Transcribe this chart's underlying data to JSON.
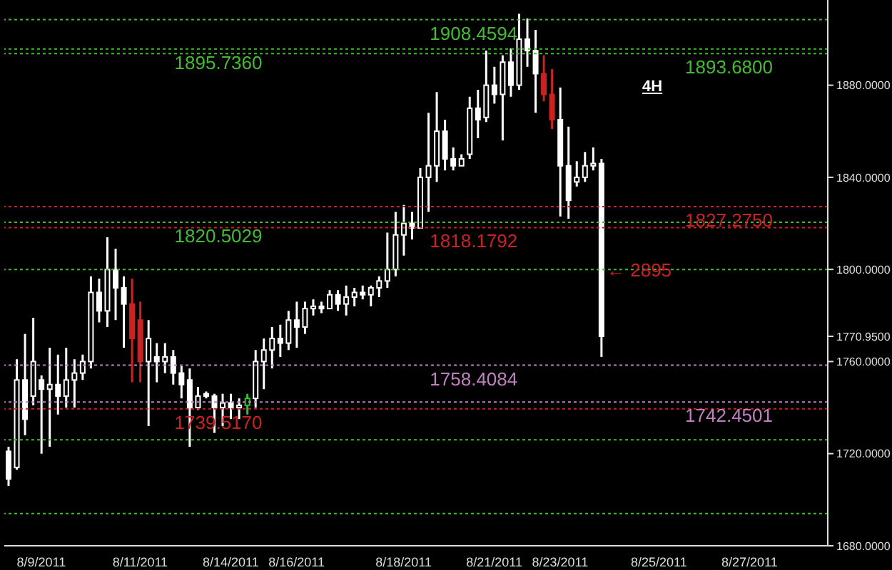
{
  "chart_data": {
    "type": "candlestick",
    "categories": [
      null,
      null,
      null,
      null,
      "8/9/2011",
      null,
      null,
      null,
      null,
      null,
      null,
      null,
      null,
      null,
      null,
      null,
      "8/11/2011",
      null,
      null,
      null,
      null,
      null,
      null,
      null,
      null,
      null,
      null,
      "8/14/2011",
      null,
      null,
      null,
      null,
      null,
      null,
      null,
      "8/16/2011",
      null,
      null,
      null,
      null,
      null,
      null,
      null,
      null,
      null,
      null,
      null,
      null,
      "8/18/2011",
      null,
      null,
      null,
      null,
      null,
      null,
      null,
      null,
      null,
      null,
      "8/21/2011",
      null,
      null,
      null,
      null,
      null,
      null,
      null,
      "8/23/2011",
      null,
      null,
      null,
      null,
      null,
      null,
      null,
      null,
      null,
      null,
      null,
      "8/25/2011",
      null,
      null,
      null,
      null,
      null,
      null,
      null,
      null,
      null,
      null,
      "8/27/2011",
      null,
      null,
      null,
      null,
      null,
      null,
      null,
      null,
      null
    ],
    "ohlc": [
      [
        1721,
        1723,
        1706,
        1709
      ],
      [
        1714,
        1761,
        1713,
        1752
      ],
      [
        1752,
        1772,
        1728,
        1735
      ],
      [
        1745,
        1779,
        1741,
        1760
      ],
      [
        1752,
        1754,
        1720,
        1748
      ],
      [
        1748,
        1766,
        1723,
        1750
      ],
      [
        1750,
        1763,
        1737,
        1745
      ],
      [
        1745,
        1766,
        1740,
        1752
      ],
      [
        1752,
        1761,
        1740,
        1755
      ],
      [
        1755,
        1763,
        1752,
        1760
      ],
      [
        1760,
        1797,
        1757,
        1790
      ],
      [
        1790,
        1796,
        1777,
        1782
      ],
      [
        1782,
        1814,
        1775,
        1800
      ],
      [
        1800,
        1809,
        1778,
        1792
      ],
      [
        1792,
        1797,
        1766,
        1785
      ],
      [
        1785,
        1796,
        1751,
        1770
      ],
      [
        1778,
        1786,
        1751,
        1760
      ],
      [
        1760,
        1778,
        1732,
        1770
      ],
      [
        1762,
        1768,
        1751,
        1760
      ],
      [
        1760,
        1768,
        1755,
        1762
      ],
      [
        1762,
        1765,
        1750,
        1755
      ],
      [
        1755,
        1758,
        1744,
        1750
      ],
      [
        1752,
        1757,
        1723,
        1740
      ],
      [
        1740,
        1749,
        1739,
        1745
      ],
      [
        1746,
        1747,
        1744,
        1745
      ],
      [
        1745,
        1746,
        1729,
        1740
      ],
      [
        1740,
        1746,
        1732,
        1742
      ],
      [
        1742,
        1746,
        1735,
        1740
      ],
      [
        1740,
        1744,
        1735,
        1741
      ],
      [
        1741,
        1746,
        1737,
        1744
      ],
      [
        1744,
        1765,
        1740,
        1760
      ],
      [
        1760,
        1770,
        1748,
        1765
      ],
      [
        1765,
        1775,
        1757,
        1770
      ],
      [
        1770,
        1776,
        1762,
        1768
      ],
      [
        1768,
        1782,
        1765,
        1778
      ],
      [
        1778,
        1786,
        1766,
        1775
      ],
      [
        1775,
        1786,
        1772,
        1783
      ],
      [
        1783,
        1787,
        1780,
        1784
      ],
      [
        1784,
        1786,
        1781,
        1783
      ],
      [
        1783,
        1791,
        1783,
        1789
      ],
      [
        1789,
        1791,
        1782,
        1785
      ],
      [
        1785,
        1793,
        1780,
        1788
      ],
      [
        1788,
        1792,
        1784,
        1790
      ],
      [
        1790,
        1793,
        1787,
        1789
      ],
      [
        1789,
        1793,
        1784,
        1792
      ],
      [
        1792,
        1797,
        1788,
        1795
      ],
      [
        1795,
        1816,
        1792,
        1800
      ],
      [
        1800,
        1825,
        1797,
        1815
      ],
      [
        1815,
        1828,
        1806,
        1820
      ],
      [
        1820,
        1825,
        1813,
        1818
      ],
      [
        1818,
        1844,
        1818,
        1840
      ],
      [
        1840,
        1868,
        1825,
        1845
      ],
      [
        1845,
        1877,
        1838,
        1860
      ],
      [
        1860,
        1865,
        1843,
        1848
      ],
      [
        1848,
        1853,
        1843,
        1845
      ],
      [
        1845,
        1850,
        1845,
        1848
      ],
      [
        1850,
        1875,
        1848,
        1870
      ],
      [
        1870,
        1878,
        1857,
        1865
      ],
      [
        1866,
        1895,
        1864,
        1880
      ],
      [
        1880,
        1888,
        1872,
        1876
      ],
      [
        1876,
        1893,
        1856,
        1890
      ],
      [
        1890,
        1896,
        1875,
        1880
      ],
      [
        1880,
        1911,
        1878,
        1900
      ],
      [
        1900,
        1909,
        1888,
        1895
      ],
      [
        1895,
        1904,
        1868,
        1885
      ],
      [
        1885,
        1893,
        1873,
        1876
      ],
      [
        1876,
        1887,
        1861,
        1865
      ],
      [
        1865,
        1879,
        1823,
        1845
      ],
      [
        1845,
        1862,
        1822,
        1830
      ],
      [
        1838,
        1847,
        1836,
        1840
      ],
      [
        1840,
        1851,
        1838,
        1845
      ],
      [
        1845,
        1853,
        1843,
        1846
      ],
      [
        1846,
        1848,
        1762,
        1771
      ],
      null,
      null,
      null,
      null,
      null,
      null,
      null,
      null,
      null,
      null,
      null,
      null,
      null,
      null,
      null,
      null,
      null,
      null,
      null,
      null,
      null,
      null,
      null,
      null,
      null,
      null,
      null
    ],
    "colors": [
      "#ffffff",
      "#ffffff",
      "#ffffff",
      "#ffffff",
      "#ffffff",
      "#ffffff",
      "#ffffff",
      "#ffffff",
      "#ffffff",
      "#ffffff",
      "#ffffff",
      "#ffffff",
      "#ffffff",
      "#ffffff",
      "#ffffff",
      "#cc2222",
      "#cc2222",
      "#ffffff",
      "#ffffff",
      "#ffffff",
      "#ffffff",
      "#ffffff",
      "#ffffff",
      "#ffffff",
      "#ffffff",
      "#ffffff",
      "#ffffff",
      "#ffffff",
      "#ffffff",
      "#22cc22",
      "#ffffff",
      "#ffffff",
      "#ffffff",
      "#ffffff",
      "#ffffff",
      "#ffffff",
      "#ffffff",
      "#ffffff",
      "#ffffff",
      "#ffffff",
      "#ffffff",
      "#ffffff",
      "#ffffff",
      "#ffffff",
      "#ffffff",
      "#ffffff",
      "#ffffff",
      "#ffffff",
      "#ffffff",
      "#ffffff",
      "#ffffff",
      "#ffffff",
      "#ffffff",
      "#ffffff",
      "#ffffff",
      "#ffffff",
      "#ffffff",
      "#ffffff",
      "#ffffff",
      "#ffffff",
      "#ffffff",
      "#ffffff",
      "#ffffff",
      "#ffffff",
      "#ffffff",
      "#cc2222",
      "#cc2222",
      "#ffffff",
      "#ffffff",
      "#ffffff",
      "#ffffff",
      "#ffffff",
      "#ffffff",
      null,
      null,
      null,
      null,
      null,
      null,
      null,
      null,
      null,
      null,
      null,
      null,
      null,
      null,
      null,
      null,
      null,
      null,
      null,
      null,
      null,
      null,
      null,
      null,
      null,
      null,
      null
    ],
    "ylim": [
      1680,
      1917
    ],
    "yticks": [
      {
        "value": 1680,
        "label": "1680.0000"
      },
      {
        "value": 1720,
        "label": "1720.0000"
      },
      {
        "value": 1760,
        "label": "1760.0000"
      },
      {
        "value": 1770.95,
        "label": "1770.9500"
      },
      {
        "value": 1800,
        "label": "1800.0000"
      },
      {
        "value": 1840,
        "label": "1840.0000"
      },
      {
        "value": 1880,
        "label": "1880.0000"
      }
    ],
    "ref_lines": [
      {
        "axis": "y",
        "value": 1895.736,
        "label": "1895.7360",
        "color": "#44bb33",
        "line_style": "dotted"
      },
      {
        "axis": "y",
        "value": 1820.5029,
        "label": "1820.5029",
        "color": "#44bb33",
        "line_style": "dotted"
      },
      {
        "axis": "y",
        "value": 1739.517,
        "label": "1739.5170",
        "color": "#cc2222",
        "line_style": "dotted"
      },
      {
        "axis": "y",
        "value": 1908.4594,
        "label": "1908.4594",
        "color": "#44bb33",
        "line_style": "dotted"
      },
      {
        "axis": "y",
        "value": 1818.1792,
        "label": "1818.1792",
        "color": "#cc2222",
        "line_style": "dotted"
      },
      {
        "axis": "y",
        "value": 1758.4084,
        "label": "1758.4084",
        "color": "#c080c0",
        "line_style": "dotted"
      },
      {
        "axis": "y",
        "value": 1893.68,
        "label": "1893.6800",
        "color": "#44bb33",
        "line_style": "dotted"
      },
      {
        "axis": "y",
        "value": 1827.275,
        "label": "1827.2750",
        "color": "#cc2222",
        "line_style": "dotted"
      },
      {
        "axis": "y",
        "value": 1742.4501,
        "label": "1742.4501",
        "color": "#c080c0",
        "line_style": "dotted"
      },
      {
        "axis": "y",
        "value": 1800,
        "color": "#44bb33",
        "line_style": "dotted"
      },
      {
        "axis": "y",
        "value": 1726,
        "color": "#44bb33",
        "line_style": "dotted"
      },
      {
        "axis": "y",
        "value": 1694,
        "color": "#44bb33",
        "line_style": "dotted"
      }
    ],
    "annotations": [
      "4H",
      "← 2895"
    ]
  }
}
